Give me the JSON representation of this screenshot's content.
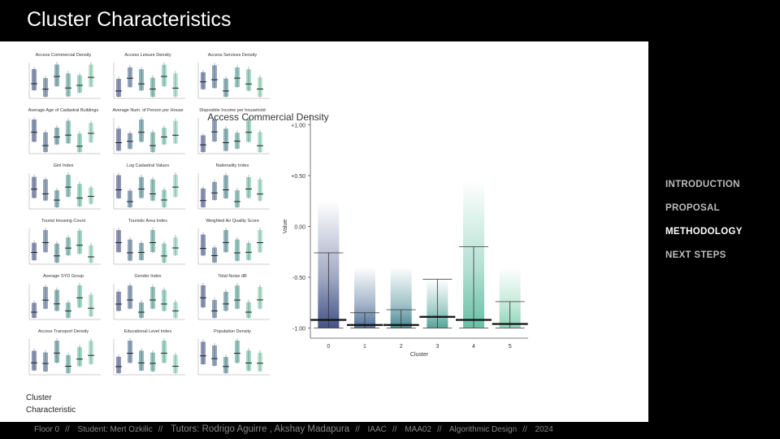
{
  "header": {
    "title": "Cluster Characteristics"
  },
  "mini_charts": [
    "Access Commercial Density",
    "Access Leisure Density",
    "Access Services Density",
    "Average Age of Cadastral Buildings",
    "Average Num. of Person per House",
    "Disposible Income per household",
    "Gini Index",
    "Log Cadastral Values",
    "Nationality Index",
    "Tourist Housing Count",
    "Touristic Area Index",
    "Weighted Air Quality Score",
    "Average SYD Group",
    "Gender Index",
    "Total Noise dB",
    "Access Transport Density",
    "Educational Level Index",
    "Population Density"
  ],
  "caption": {
    "line1": "Cluster",
    "line2": "Characteristic"
  },
  "chart_data": {
    "type": "box",
    "title": "Access Commercial Density",
    "xlabel": "Cluster",
    "ylabel": "Value",
    "categories": [
      "0",
      "1",
      "2",
      "3",
      "4",
      "5"
    ],
    "ytick_labels": [
      "+1.00",
      "+0.50",
      "0.00",
      "-0.50",
      "-1.00"
    ],
    "ylim": [
      -1.1,
      1.1
    ],
    "colors": [
      "#2e3f7a",
      "#3a5f8a",
      "#357b87",
      "#3f9a8c",
      "#55b99a",
      "#7fcfb0"
    ],
    "series": [
      {
        "values": [
          {
            "whisker_low": -1.0,
            "median": -0.92,
            "whisker_high": -0.26,
            "glow_top": 0.25
          },
          {
            "whisker_low": -1.0,
            "median": -0.97,
            "whisker_high": -0.85,
            "glow_top": -0.4
          },
          {
            "whisker_low": -1.0,
            "median": -0.97,
            "whisker_high": -0.82,
            "glow_top": -0.4
          },
          {
            "whisker_low": -1.0,
            "median": -0.89,
            "whisker_high": -0.52,
            "glow_top": -0.52
          },
          {
            "whisker_low": -1.0,
            "median": -0.92,
            "whisker_high": -0.2,
            "glow_top": 0.45
          },
          {
            "whisker_low": -1.0,
            "median": -0.96,
            "whisker_high": -0.74,
            "glow_top": -0.4
          }
        ]
      }
    ]
  },
  "nav": [
    {
      "label": "INTRODUCTION",
      "active": false
    },
    {
      "label": "PROPOSAL",
      "active": false
    },
    {
      "label": "METHODOLOGY",
      "active": true
    },
    {
      "label": "NEXT STEPS",
      "active": false
    }
  ],
  "footer": {
    "floor": "Floor 0",
    "student": "Student: Mert Ozkilic",
    "tutors": "Tutors: Rodrigo Aguirre , Akshay Madapura",
    "school": "IAAC",
    "program": "MAA02",
    "course": "Algorithmic Design",
    "year": "2024"
  }
}
